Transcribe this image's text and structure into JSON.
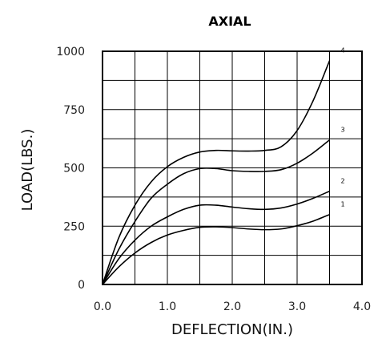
{
  "chart_data": {
    "type": "line",
    "title": "AXIAL",
    "xlabel": "DEFLECTION(IN.)",
    "ylabel": "LOAD(LBS.)",
    "xlim": [
      0,
      4
    ],
    "ylim": [
      0,
      1000
    ],
    "x_ticks": [
      "0.0",
      "1.0",
      "2.0",
      "3.0",
      "4.0"
    ],
    "y_ticks": [
      "0",
      "250",
      "500",
      "750",
      "1000"
    ],
    "x_tick_values": [
      0,
      1,
      2,
      3,
      4
    ],
    "y_tick_values": [
      0,
      250,
      500,
      750,
      1000
    ],
    "grid": true,
    "grid_x_step": 0.5,
    "grid_y_step": 125,
    "series": [
      {
        "name": "1",
        "x": [
          0,
          0.25,
          0.5,
          0.75,
          1.0,
          1.25,
          1.5,
          1.75,
          2.0,
          2.25,
          2.5,
          2.75,
          3.0,
          3.25,
          3.5
        ],
        "values": [
          0,
          75,
          135,
          180,
          212,
          232,
          245,
          247,
          244,
          238,
          235,
          238,
          252,
          272,
          300
        ]
      },
      {
        "name": "2",
        "x": [
          0,
          0.25,
          0.5,
          0.75,
          1.0,
          1.25,
          1.5,
          1.75,
          2.0,
          2.25,
          2.5,
          2.75,
          3.0,
          3.25,
          3.5
        ],
        "values": [
          0,
          110,
          190,
          250,
          290,
          322,
          340,
          340,
          332,
          325,
          322,
          328,
          345,
          370,
          400
        ]
      },
      {
        "name": "3",
        "x": [
          0,
          0.25,
          0.5,
          0.75,
          1.0,
          1.25,
          1.5,
          1.75,
          2.0,
          2.25,
          2.5,
          2.75,
          3.0,
          3.25,
          3.5
        ],
        "values": [
          0,
          150,
          270,
          370,
          430,
          475,
          497,
          497,
          488,
          485,
          485,
          492,
          520,
          565,
          620
        ]
      },
      {
        "name": "4",
        "x": [
          0,
          0.25,
          0.5,
          0.75,
          1.0,
          1.25,
          1.5,
          1.75,
          2.0,
          2.25,
          2.5,
          2.75,
          3.0,
          3.25,
          3.5
        ],
        "values": [
          0,
          200,
          340,
          440,
          505,
          545,
          568,
          575,
          573,
          572,
          575,
          590,
          660,
          790,
          960
        ]
      }
    ]
  }
}
